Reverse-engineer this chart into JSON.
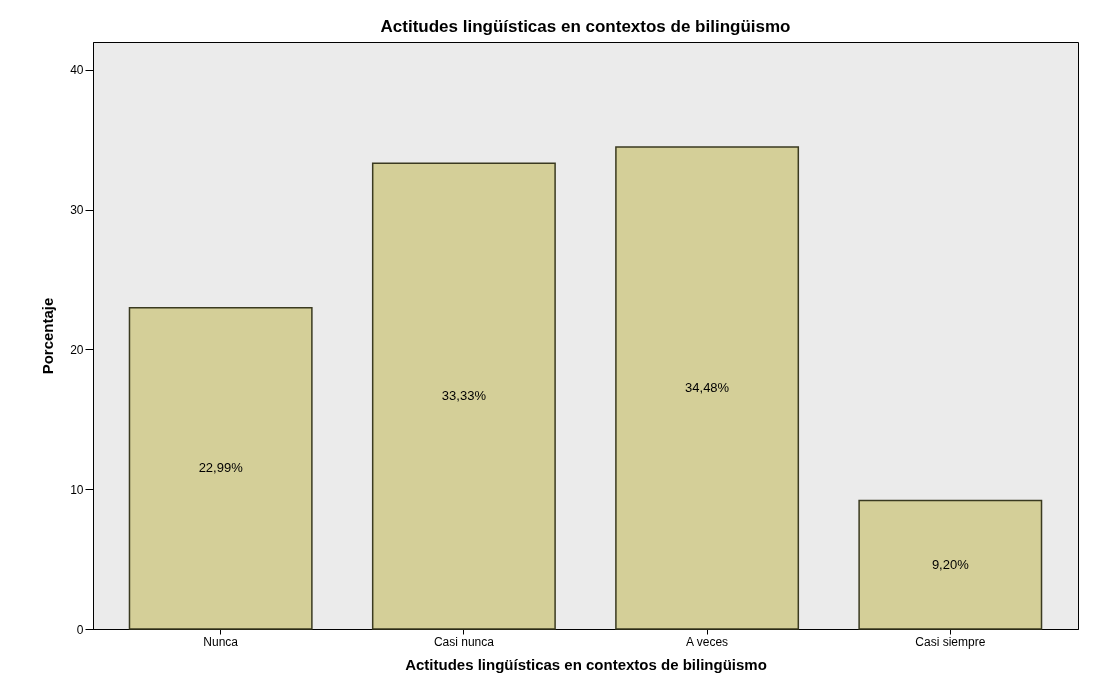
{
  "chart_data": {
    "type": "bar",
    "title": "Actitudes lingüísticas en contextos de bilingüismo",
    "xlabel": "Actitudes lingüísticas en contextos de bilingüismo",
    "ylabel": "Porcentaje",
    "categories": [
      "Nunca",
      "Casi nunca",
      "A veces",
      "Casi siempre"
    ],
    "values": [
      22.99,
      33.33,
      34.48,
      9.2
    ],
    "value_labels": [
      "22,99%",
      "33,33%",
      "34,48%",
      "9,20%"
    ],
    "color": "#d4cf98",
    "ylim": [
      0,
      42
    ],
    "yticks": [
      0,
      10,
      20,
      30,
      40
    ],
    "grid": false
  }
}
